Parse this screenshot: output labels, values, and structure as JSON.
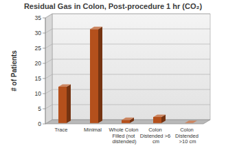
{
  "chart_data": {
    "type": "bar",
    "title": "Residual Gas in Colon, Post-procedure 1 hr (CO₂)",
    "y_label": "# of Patients",
    "categories": [
      "Trace",
      "Minimal",
      "Whole Colon Filled (not distended)",
      "Colon Distended >6 cm",
      "Colon Distended >10 cm"
    ],
    "values": [
      12,
      31,
      1,
      2,
      0
    ],
    "color": "#b4501c",
    "ylim": [
      0,
      35
    ],
    "yticks": [
      0,
      5,
      10,
      15,
      20,
      25,
      30,
      35
    ],
    "grid": true
  }
}
